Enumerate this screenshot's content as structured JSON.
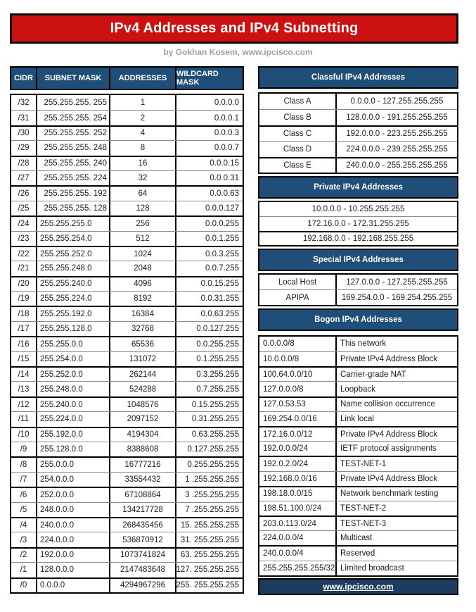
{
  "title": "IPv4 Addresses and IPv4 Subnetting",
  "subtitle": "by Gokhan Kosem, www.ipcisco.com",
  "colors": {
    "banner_red": "#CC1111",
    "header_blue": "#1F4E79",
    "footer_blue": "#1C3C60",
    "text": "#1C1C1C",
    "subtitle_gray": "#A0A0A0"
  },
  "subnet_table": {
    "headers": [
      "CIDR",
      "SUBNET MASK",
      "ADDRESSES",
      "WILDCARD MASK"
    ],
    "rows": [
      [
        "/32",
        "255.255.255. 255",
        "1",
        "0.0.0.0"
      ],
      [
        "/31",
        "255.255.255. 254",
        "2",
        "0.0.0.1"
      ],
      [
        "/30",
        "255.255.255. 252",
        "4",
        "0.0.0.3"
      ],
      [
        "/29",
        "255.255.255. 248",
        "8",
        "0.0.0.7"
      ],
      [
        "/28",
        "255.255.255. 240",
        "16",
        "0.0.0.15"
      ],
      [
        "/27",
        "255.255.255. 224",
        "32",
        "0.0.0.31"
      ],
      [
        "/26",
        "255.255.255. 192",
        "64",
        "0.0.0.63"
      ],
      [
        "/25",
        "255.255.255. 128",
        "128",
        "0.0.0.127"
      ],
      [
        "/24",
        "255.255.255.0",
        "256",
        "0.0.0.255"
      ],
      [
        "/23",
        "255.255.254.0",
        "512",
        "0.0.1.255"
      ],
      [
        "/22",
        "255.255.252.0",
        "1024",
        "0.0.3.255"
      ],
      [
        "/21",
        "255.255.248.0",
        "2048",
        "0.0.7.255"
      ],
      [
        "/20",
        "255.255.240.0",
        "4096",
        "0.0.15.255"
      ],
      [
        "/19",
        "255.255.224.0",
        "8192",
        "0.0.31.255"
      ],
      [
        "/18",
        "255.255.192.0",
        "16384",
        "0.0.63.255"
      ],
      [
        "/17",
        "255.255.128.0",
        "32768",
        "0.0.127.255"
      ],
      [
        "/16",
        "255.255.0.0",
        "65536",
        "0.0.255.255"
      ],
      [
        "/15",
        "255.254.0.0",
        "131072",
        "0.1.255.255"
      ],
      [
        "/14",
        "255.252.0.0",
        "262144",
        "0.3.255.255"
      ],
      [
        "/13",
        "255.248.0.0",
        "524288",
        "0.7.255.255"
      ],
      [
        "/12",
        "255.240.0.0",
        "1048576",
        "0.15.255.255"
      ],
      [
        "/11",
        "255.224.0.0",
        "2097152",
        "0.31.255.255"
      ],
      [
        "/10",
        "255.192.0.0",
        "4194304",
        "0.63.255.255"
      ],
      [
        "/9",
        "255.128.0.0",
        "8388608",
        "0.127.255.255"
      ],
      [
        "/8",
        "255.0.0.0",
        "16777216",
        "0.255.255.255"
      ],
      [
        "/7",
        "254.0.0.0",
        "33554432",
        "1 .255.255.255"
      ],
      [
        "/6",
        "252.0.0.0",
        "67108864",
        "3 .255.255.255"
      ],
      [
        "/5",
        "248.0.0.0",
        "134217728",
        "7 .255.255.255"
      ],
      [
        "/4",
        "240.0.0.0",
        "268435456",
        "15. 255.255.255"
      ],
      [
        "/3",
        "224.0.0.0",
        "536870912",
        "31. 255.255.255"
      ],
      [
        "/2",
        "192.0.0.0",
        "1073741824",
        "63. 255.255.255"
      ],
      [
        "/1",
        "128.0.0.0",
        "2147483648",
        "127. 255.255.255"
      ],
      [
        "/0",
        "0.0.0.0",
        "4294967296",
        "255. 255.255.255"
      ]
    ]
  },
  "classful": {
    "title": "Classful IPv4 Addresses",
    "rows": [
      [
        "Class A",
        "0.0.0.0 - 127.255.255.255"
      ],
      [
        "Class B",
        "128.0.0.0 - 191.255.255.255"
      ],
      [
        "Class C",
        "192.0.0.0 - 223.255.255.255"
      ],
      [
        "Class D",
        "224.0.0.0 - 239.255.255.255"
      ],
      [
        "Class E",
        "240.0.0.0 - 255.255.255.255"
      ]
    ]
  },
  "private": {
    "title": "Private IPv4 Addresses",
    "rows": [
      "10.0.0.0 - 10.255.255.255",
      "172.16.0.0 - 172.31.255.255",
      "192.168.0.0 - 192.168.255.255"
    ]
  },
  "special": {
    "title": "Special IPv4 Addresses",
    "rows": [
      [
        "Local Host",
        "127.0.0.0 - 127.255.255.255"
      ],
      [
        "APIPA",
        "169.254.0.0 - 169.254.255.255"
      ]
    ]
  },
  "bogon": {
    "title": "Bogon IPv4 Addresses",
    "rows": [
      [
        "0.0.0.0/8",
        "This network"
      ],
      [
        "10.0.0.0/8",
        "Private IPv4 Address Block"
      ],
      [
        "100.64.0.0/10",
        "Carrier-grade NAT"
      ],
      [
        "127.0.0.0/8",
        "Loopback"
      ],
      [
        "127.0.53.53",
        "Name collision occurrence"
      ],
      [
        "169.254.0.0/16",
        "Link local"
      ],
      [
        "172.16.0.0/12",
        "Private IPv4 Address Block"
      ],
      [
        "192.0.0.0/24",
        "IETF protocol assignments"
      ],
      [
        "192.0.2.0/24",
        "TEST-NET-1"
      ],
      [
        "192.168.0.0/16",
        "Private IPv4 Address Block"
      ],
      [
        "198.18.0.0/15",
        "Network benchmark testing"
      ],
      [
        "198.51.100.0/24",
        "TEST-NET-2"
      ],
      [
        "203.0.113.0/24",
        "TEST-NET-3"
      ],
      [
        "224.0.0.0/4",
        "Multicast"
      ],
      [
        "240.0.0.0/4",
        "Reserved"
      ],
      [
        "255.255.255.255/32",
        "Limited broadcast"
      ]
    ]
  },
  "footer": {
    "link": "www.ipcisco.com"
  }
}
